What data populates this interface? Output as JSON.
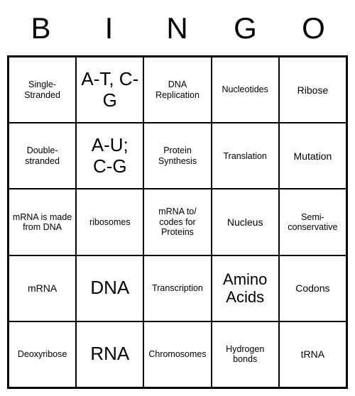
{
  "header": {
    "letters": [
      "B",
      "I",
      "N",
      "G",
      "O"
    ],
    "font_size": 42,
    "color": "#000000"
  },
  "grid": {
    "cols": 5,
    "rows": 5,
    "border_color": "#000000",
    "background_color": "#ffffff",
    "cells": [
      [
        {
          "text": "Single-Stranded",
          "size": "small"
        },
        {
          "text": "A-T, C-G",
          "size": "xl"
        },
        {
          "text": "DNA Replication",
          "size": "small"
        },
        {
          "text": "Nucleotides",
          "size": "small"
        },
        {
          "text": "Ribose",
          "size": "med"
        }
      ],
      [
        {
          "text": "Double-stranded",
          "size": "small"
        },
        {
          "text": "A-U; C-G",
          "size": "xl"
        },
        {
          "text": "Protein Synthesis",
          "size": "small"
        },
        {
          "text": "Translation",
          "size": "small"
        },
        {
          "text": "Mutation",
          "size": "med"
        }
      ],
      [
        {
          "text": "mRNA is made from DNA",
          "size": "small"
        },
        {
          "text": "ribosomes",
          "size": "small"
        },
        {
          "text": "mRNA to/ codes for Proteins",
          "size": "small"
        },
        {
          "text": "Nucleus",
          "size": "med"
        },
        {
          "text": "Semi-conservative",
          "size": "small"
        }
      ],
      [
        {
          "text": "mRNA",
          "size": "med"
        },
        {
          "text": "DNA",
          "size": "xl"
        },
        {
          "text": "Transcription",
          "size": "small"
        },
        {
          "text": "Amino Acids",
          "size": "large"
        },
        {
          "text": "Codons",
          "size": "med"
        }
      ],
      [
        {
          "text": "Deoxyribose",
          "size": "small"
        },
        {
          "text": "RNA",
          "size": "xl"
        },
        {
          "text": "Chromosomes",
          "size": "small"
        },
        {
          "text": "Hydrogen bonds",
          "size": "small"
        },
        {
          "text": "tRNA",
          "size": "med"
        }
      ]
    ]
  }
}
